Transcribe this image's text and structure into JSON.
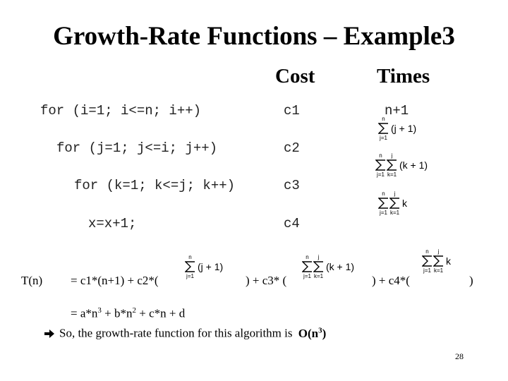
{
  "header": {
    "title": "Growth-Rate Functions – Example3"
  },
  "table": {
    "headers": {
      "cost": "Cost",
      "times": "Times"
    },
    "rows": [
      {
        "code": "for (i=1; i<=n; i++)",
        "cost": "c1",
        "times": "n+1"
      },
      {
        "code": "for (j=1; j<=i; j++)",
        "cost": "c2",
        "times": {
          "sums": [
            {
              "upper": "n",
              "lower": "j=1"
            }
          ],
          "body": "(j + 1)"
        }
      },
      {
        "code": "for (k=1; k<=j; k++)",
        "cost": "c3",
        "times": {
          "sums": [
            {
              "upper": "n",
              "lower": "j=1"
            },
            {
              "upper": "j",
              "lower": "k=1"
            }
          ],
          "body": "(k + 1)"
        }
      },
      {
        "code": "x=x+1;",
        "cost": "c4",
        "times": {
          "sums": [
            {
              "upper": "n",
              "lower": "j=1"
            },
            {
              "upper": "j",
              "lower": "k=1"
            }
          ],
          "body": "k"
        }
      }
    ]
  },
  "total": {
    "label": "T(n)",
    "parts": [
      "= c1*(n+1) + c2*(",
      ") + c3* (",
      ") + c4*(",
      ")"
    ]
  },
  "expansion": [
    "= a*n",
    "3",
    " + b*n",
    "2",
    " + c*n + d"
  ],
  "conclusion": {
    "text": "So, the growth-rate function for this algorithm is",
    "result": "O(n",
    "exponent": "3",
    "close": ")"
  },
  "footer": {
    "page_number": "28"
  }
}
